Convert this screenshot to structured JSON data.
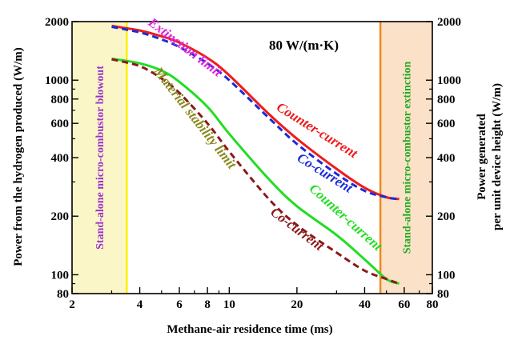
{
  "chart_data": {
    "type": "line",
    "xscale": "log",
    "yscale": "log",
    "xlim": [
      2,
      80
    ],
    "ylim": [
      80,
      2000
    ],
    "x_ticks": [
      2,
      4,
      6,
      8,
      10,
      20,
      40,
      60,
      80
    ],
    "y_ticks_left": [
      80,
      100,
      200,
      400,
      600,
      800,
      1000,
      2000
    ],
    "y_ticks_right": [
      80,
      100,
      200,
      400,
      600,
      800,
      1000,
      2000
    ],
    "xlabel": "Methane-air residence time (ms)",
    "ylabel_left": "Power from the hydrogen produced (W/m)",
    "ylabel_right_line1": "Power generated",
    "ylabel_right_line2": "per unit device height (W/m)",
    "condition_label": "80 W/(m·K)",
    "series": [
      {
        "name": "Counter-current",
        "group": "Extinction limit",
        "color": "#ee1c1c",
        "dash": "solid",
        "x": [
          3.0,
          4,
          5,
          6,
          8,
          10,
          15,
          20,
          30,
          40,
          50,
          57
        ],
        "y": [
          1900,
          1800,
          1680,
          1560,
          1300,
          1060,
          670,
          500,
          350,
          280,
          250,
          245
        ]
      },
      {
        "name": "Co-current",
        "group": "Extinction limit",
        "color": "#1c2bd6",
        "dash": "dashed",
        "x": [
          3.0,
          4,
          5,
          6,
          8,
          10,
          15,
          20,
          30,
          40,
          50,
          57
        ],
        "y": [
          1880,
          1760,
          1620,
          1480,
          1220,
          1000,
          640,
          470,
          330,
          270,
          250,
          245
        ]
      },
      {
        "name": "Counter-current",
        "group": "Material stability limit",
        "color": "#22dd22",
        "dash": "solid",
        "x": [
          3.0,
          4,
          5,
          6,
          8,
          10,
          15,
          20,
          30,
          40,
          50,
          57
        ],
        "y": [
          1290,
          1220,
          1120,
          980,
          730,
          530,
          310,
          225,
          160,
          120,
          95,
          90
        ]
      },
      {
        "name": "Co-current",
        "group": "Material stability limit",
        "color": "#8b1a1a",
        "dash": "dashed",
        "x": [
          3.0,
          4,
          5,
          6,
          8,
          10,
          15,
          20,
          30,
          40,
          50,
          57
        ],
        "y": [
          1280,
          1180,
          1020,
          860,
          600,
          430,
          245,
          180,
          130,
          105,
          95,
          90
        ]
      }
    ],
    "annotations": [
      {
        "text": "Extinction limit",
        "color": "#dd22dd",
        "x": 6.2,
        "y": 1420,
        "rotate": 37
      },
      {
        "text": "Counter-current",
        "color": "#ee1c1c",
        "x": 24,
        "y": 530,
        "rotate": 32
      },
      {
        "text": "Co-current",
        "color": "#1c2bd6",
        "x": 26,
        "y": 320,
        "rotate": 32
      },
      {
        "text": "Material stability limit",
        "color": "#8a8a1e",
        "x": 6.8,
        "y": 620,
        "rotate": 52
      },
      {
        "text": "Counter-current",
        "color": "#22dd22",
        "x": 32,
        "y": 190,
        "rotate": 42
      },
      {
        "text": "Co-current",
        "color": "#8b1a1a",
        "x": 19.5,
        "y": 165,
        "rotate": 37
      }
    ],
    "regions": [
      {
        "label": "Stand-alone micro-combustor blowout",
        "x_from": 2.0,
        "x_to": 3.5,
        "fill": "#fbf6c8",
        "border": "#ffee00",
        "label_color": "#9933cc"
      },
      {
        "label": "Stand-alone micro-combustor extinction",
        "x_from": 47,
        "x_to": 80,
        "fill": "#fbe1c7",
        "border": "#ee8a1e",
        "label_color": "#22aa22"
      }
    ]
  }
}
